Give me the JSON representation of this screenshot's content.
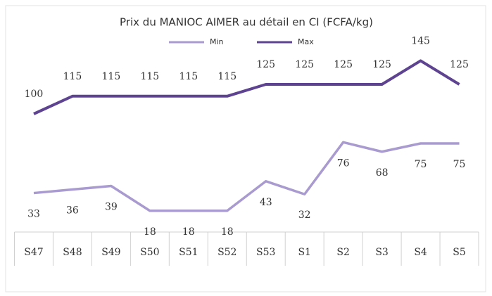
{
  "chart_data": {
    "type": "line",
    "title": "Prix du MANIOC AIMER au détail en CI (FCFA/kg)",
    "categories": [
      "S47",
      "S48",
      "S49",
      "S50",
      "S51",
      "S52",
      "S53",
      "S1",
      "S2",
      "S3",
      "S4",
      "S5"
    ],
    "series": [
      {
        "name": "Min",
        "color": "#a99bcf",
        "values": [
          33,
          36,
          39,
          18,
          18,
          18,
          43,
          32,
          76,
          68,
          75,
          75
        ]
      },
      {
        "name": "Max",
        "color": "#5e4391",
        "values": [
          100,
          115,
          115,
          115,
          115,
          115,
          125,
          125,
          125,
          125,
          145,
          125
        ]
      }
    ],
    "ylim": [
      0,
      150
    ],
    "legend": "top"
  }
}
